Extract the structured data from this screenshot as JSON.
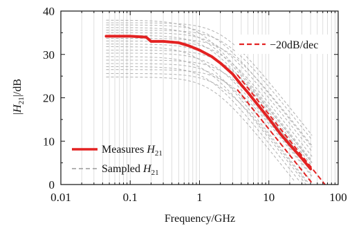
{
  "chart_data": {
    "type": "line",
    "xlabel": "Frequency/GHz",
    "ylabel": {
      "pre": "|",
      "var": "H",
      "sub": "21",
      "post": "|/dB"
    },
    "x_scale": "log",
    "xlim": [
      0.01,
      100
    ],
    "ylim": [
      0,
      40
    ],
    "x_ticks": [
      {
        "value": 0.01,
        "label": "0.01"
      },
      {
        "value": 0.1,
        "label": "0.1"
      },
      {
        "value": 1,
        "label": "1"
      },
      {
        "value": 10,
        "label": "10"
      },
      {
        "value": 100,
        "label": "100"
      }
    ],
    "y_ticks": [
      {
        "value": 0,
        "label": "0"
      },
      {
        "value": 10,
        "label": "10"
      },
      {
        "value": 20,
        "label": "20"
      },
      {
        "value": 30,
        "label": "30"
      },
      {
        "value": 40,
        "label": "40"
      }
    ],
    "grid": "light vertical gridlines at log minor ticks",
    "legend": [
      {
        "label": "Measures",
        "var": "H",
        "sub": "21",
        "style": "solid",
        "color": "#e32222",
        "position": "bottom-left"
      },
      {
        "label": "Sampled",
        "var": "H",
        "sub": "21",
        "style": "dashed",
        "color": "#999999",
        "position": "bottom-left"
      },
      {
        "label": "−20dB/dec",
        "style": "dashed",
        "color": "#e32222",
        "position": "top-right"
      }
    ],
    "measured": {
      "color": "#e32222",
      "x": [
        0.045,
        0.1,
        0.17,
        0.2,
        0.3,
        0.5,
        0.7,
        1,
        1.5,
        2,
        3,
        4,
        5,
        7,
        10,
        15,
        20,
        30,
        40
      ],
      "y": [
        34.2,
        34.2,
        34.0,
        33.0,
        33.0,
        32.7,
        32.0,
        31.0,
        29.5,
        28.0,
        25.5,
        23.0,
        21.2,
        18.3,
        15.2,
        11.5,
        9.2,
        6.0,
        3.6
      ]
    },
    "sampled_levels": [
      37.9,
      37.3,
      36.8,
      36.2,
      35.6,
      35.0,
      34.4,
      33.7,
      33.1,
      32.4,
      31.8,
      31.0,
      30.3,
      29.5,
      28.7,
      27.9,
      27.2,
      26.5,
      25.6,
      24.8
    ],
    "sampled_color": "#aaaaaa",
    "slope_lines": {
      "color": "#e32222",
      "slope_db_per_decade": -20,
      "anchors": [
        {
          "x": 10,
          "y": 16.2
        },
        {
          "x": 10,
          "y": 12.8
        }
      ]
    }
  }
}
